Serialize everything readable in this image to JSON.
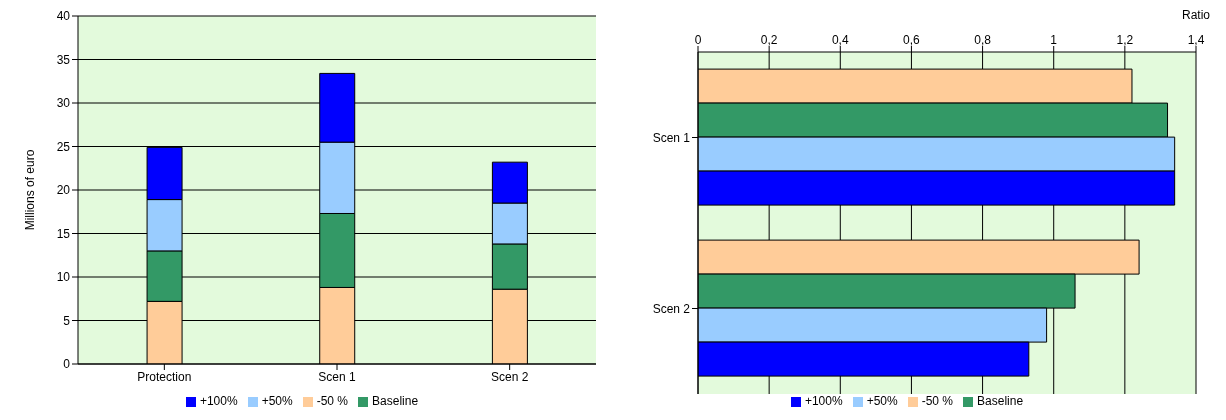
{
  "chart_data": [
    {
      "type": "bar",
      "stacked": true,
      "ylabel": "Millions of euro",
      "categories": [
        "Protection",
        "Scen 1",
        "Scen 2"
      ],
      "ylim": [
        0,
        40
      ],
      "yticks": [
        0,
        5,
        10,
        15,
        20,
        25,
        30,
        35,
        40
      ],
      "grid": "y",
      "legend": "bottom",
      "series": [
        {
          "name": "-50 %",
          "color": "#ffcc99",
          "values": [
            7.2,
            8.8,
            8.6
          ]
        },
        {
          "name": "Baseline",
          "color": "#339966",
          "values": [
            5.8,
            8.5,
            5.2
          ]
        },
        {
          "name": "+50%",
          "color": "#99ccff",
          "values": [
            5.9,
            8.2,
            4.7
          ]
        },
        {
          "name": "+100%",
          "color": "#0000ff",
          "values": [
            6.0,
            7.9,
            4.7
          ]
        }
      ]
    },
    {
      "type": "bar",
      "orientation": "horizontal",
      "xlabel": "Ratio",
      "categories": [
        "Scen 1",
        "Scen 2"
      ],
      "xlim": [
        0,
        1.4
      ],
      "xticks": [
        0,
        {
          "value": 0.2,
          "label": "0,2"
        },
        {
          "value": 0.4,
          "label": "0,4"
        },
        {
          "value": 0.6,
          "label": "0,6"
        },
        {
          "value": 0.8,
          "label": "0,8"
        },
        1,
        {
          "value": 1.2,
          "label": "1,2"
        },
        {
          "value": 1.4,
          "label": "1,4"
        }
      ],
      "grid": "x",
      "legend": "bottom",
      "series": [
        {
          "name": "-50 %",
          "color": "#ffcc99",
          "values": [
            1.22,
            1.24
          ]
        },
        {
          "name": "Baseline",
          "color": "#339966",
          "values": [
            1.32,
            1.06
          ]
        },
        {
          "name": "+50%",
          "color": "#99ccff",
          "values": [
            1.34,
            0.98
          ]
        },
        {
          "name": "+100%",
          "color": "#0000ff",
          "values": [
            1.34,
            0.93
          ]
        }
      ]
    }
  ]
}
